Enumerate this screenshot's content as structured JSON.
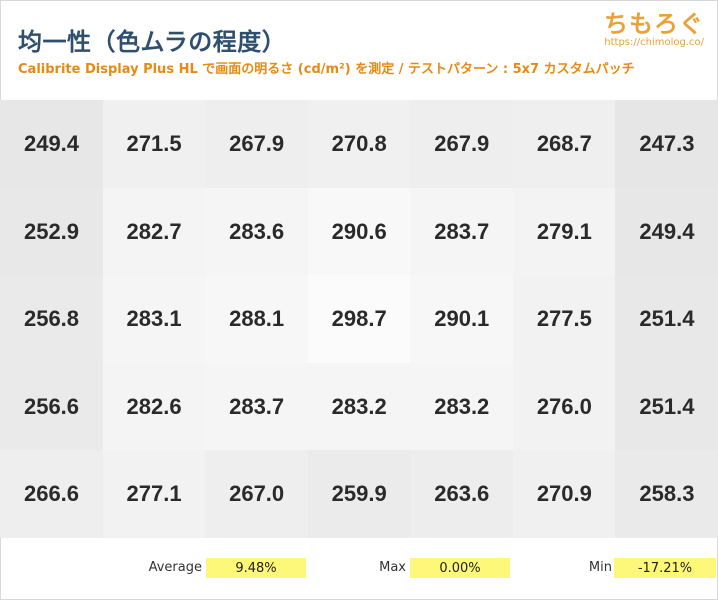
{
  "header": {
    "title": "均一性（色ムラの程度）",
    "subtitle": "Calibrite Display Plus HL で画面の明るさ (cd/m²) を測定 / テストパターン : 5x7 カスタムパッチ",
    "logo_text": "ちもろぐ",
    "logo_url": "https://chimolog.co/"
  },
  "stats": {
    "average_label": "Average",
    "average_value": "9.48%",
    "max_label": "Max",
    "max_value": "0.00%",
    "min_label": "Min",
    "min_value": "-17.21%"
  },
  "chart_data": {
    "type": "heatmap",
    "rows": 5,
    "cols": 7,
    "values": [
      [
        "249.4",
        "271.5",
        "267.9",
        "270.8",
        "267.9",
        "268.7",
        "247.3"
      ],
      [
        "252.9",
        "282.7",
        "283.6",
        "290.6",
        "283.7",
        "279.1",
        "249.4"
      ],
      [
        "256.8",
        "283.1",
        "288.1",
        "298.7",
        "290.1",
        "277.5",
        "251.4"
      ],
      [
        "256.6",
        "282.6",
        "283.7",
        "283.2",
        "283.2",
        "276.0",
        "251.4"
      ],
      [
        "266.6",
        "277.1",
        "267.0",
        "259.9",
        "263.6",
        "270.9",
        "258.3"
      ]
    ],
    "color_low": "#e6e6e6",
    "color_high": "#fbfbfb"
  }
}
